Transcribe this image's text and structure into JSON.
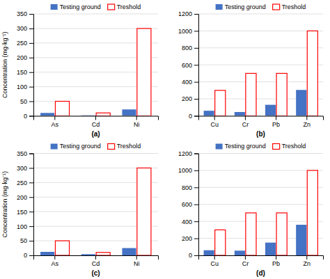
{
  "chart_data": [
    {
      "type": "bar",
      "xlabel": "(a)",
      "ylabel": "Concentration (mg·kg⁻¹)",
      "categories": [
        "As",
        "Cd",
        "Ni"
      ],
      "series": [
        {
          "name": "Testing ground",
          "color": "#4472C4",
          "values": [
            10,
            2,
            22
          ]
        },
        {
          "name": "Treshold",
          "color": "#FF0000",
          "values": [
            50,
            10,
            300
          ]
        }
      ],
      "ylim": [
        0,
        350
      ],
      "yticks": [
        0,
        50,
        100,
        150,
        200,
        250,
        300,
        350
      ],
      "grid": true,
      "legend": "top"
    },
    {
      "type": "bar",
      "xlabel": "(b)",
      "categories": [
        "Cu",
        "Cr",
        "Pb",
        "Zn"
      ],
      "series": [
        {
          "name": "Testing ground",
          "color": "#4472C4",
          "values": [
            60,
            45,
            130,
            305
          ]
        },
        {
          "name": "Treshold",
          "color": "#FF0000",
          "values": [
            300,
            500,
            500,
            1000
          ]
        }
      ],
      "ylim": [
        0,
        1200
      ],
      "yticks": [
        0,
        200,
        400,
        600,
        800,
        1000,
        1200
      ],
      "grid": true,
      "legend": "top"
    },
    {
      "type": "bar",
      "xlabel": "(c)",
      "ylabel": "Concentration (mg·kg⁻¹)",
      "categories": [
        "As",
        "Cd",
        "Ni"
      ],
      "series": [
        {
          "name": "Testing ground",
          "color": "#4472C4",
          "values": [
            12,
            4,
            25
          ]
        },
        {
          "name": "Treshold",
          "color": "#FF0000",
          "values": [
            50,
            10,
            300
          ]
        }
      ],
      "ylim": [
        0,
        350
      ],
      "yticks": [
        0,
        50,
        100,
        150,
        200,
        250,
        300,
        350
      ],
      "grid": true,
      "legend": "top"
    },
    {
      "type": "bar",
      "xlabel": "(d)",
      "categories": [
        "Cu",
        "Cr",
        "Pb",
        "Zn"
      ],
      "series": [
        {
          "name": "Testing ground",
          "color": "#4472C4",
          "values": [
            60,
            55,
            150,
            360
          ]
        },
        {
          "name": "Treshold",
          "color": "#FF0000",
          "values": [
            300,
            500,
            500,
            1000
          ]
        }
      ],
      "ylim": [
        0,
        1200
      ],
      "yticks": [
        0,
        200,
        400,
        600,
        800,
        1000,
        1200
      ],
      "grid": true,
      "legend": "top"
    }
  ]
}
